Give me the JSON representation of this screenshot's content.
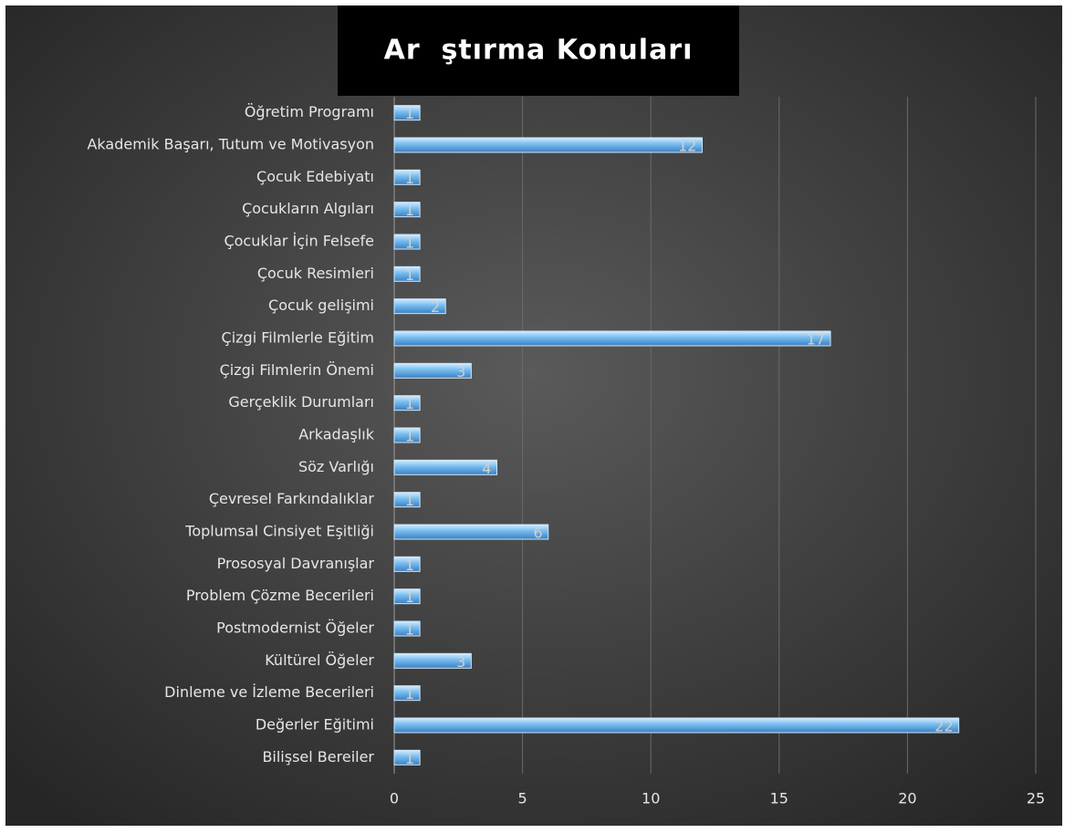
{
  "chart_data": {
    "type": "bar",
    "title": "Ar  ştırma Konuları",
    "categories": [
      "Öğretim Programı",
      "Akademik Başarı, Tutum ve Motivasyon",
      "Çocuk Edebiyatı",
      "Çocukların Algıları",
      "Çocuklar İçin Felsefe",
      "Çocuk Resimleri",
      "Çocuk gelişimi",
      "Çizgi Filmlerle Eğitim",
      "Çizgi Filmlerin Önemi",
      "Gerçeklik Durumları",
      "Arkadaşlık",
      "Söz Varlığı",
      "Çevresel Farkındalıklar",
      "Toplumsal Cinsiyet Eşitliği",
      "Prososyal Davranışlar",
      "Problem Çözme Becerileri",
      "Postmodernist Öğeler",
      "Kültürel Öğeler",
      "Dinleme ve İzleme Becerileri",
      "Değerler Eğitimi",
      "Bilişsel Bereiler"
    ],
    "values": [
      1,
      12,
      1,
      1,
      1,
      1,
      2,
      17,
      3,
      1,
      1,
      4,
      1,
      6,
      1,
      1,
      1,
      3,
      1,
      22,
      1
    ],
    "color": "#6cb4ec",
    "xlim": [
      0,
      25
    ],
    "xticks": [
      0,
      5,
      10,
      15,
      20,
      25
    ],
    "grid": true
  }
}
